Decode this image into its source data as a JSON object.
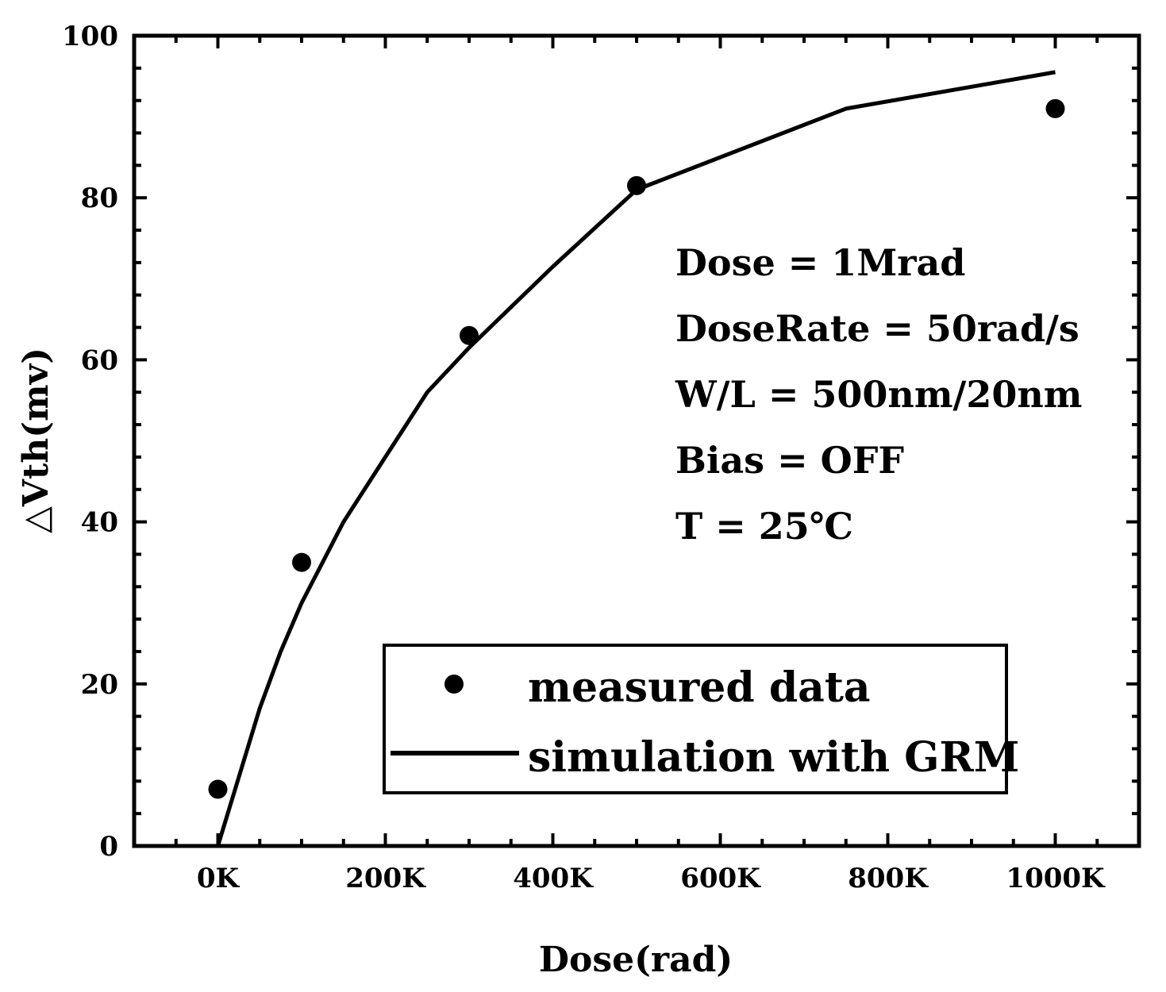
{
  "chart_data": {
    "type": "scatter+line",
    "title": "",
    "xlabel": "Dose(rad)",
    "ylabel": "△Vth(mv)",
    "xlim": [
      -100000,
      1100000
    ],
    "ylim": [
      0,
      100
    ],
    "x_ticks": [
      0,
      200000,
      400000,
      600000,
      800000,
      1000000
    ],
    "x_tick_labels": [
      "0K",
      "200K",
      "400K",
      "600K",
      "800K",
      "1000K"
    ],
    "y_ticks": [
      0,
      20,
      40,
      60,
      80,
      100
    ],
    "y_tick_labels": [
      "0",
      "20",
      "40",
      "60",
      "80",
      "100"
    ],
    "grid": false,
    "legend_position": "bottom-right",
    "series": [
      {
        "name": "measured data",
        "kind": "scatter",
        "color": "#000000",
        "x": [
          0,
          100000,
          300000,
          500000,
          1000000
        ],
        "y": [
          7,
          35,
          63,
          81.5,
          91
        ]
      },
      {
        "name": "simulation with GRM",
        "kind": "line",
        "color": "#000000",
        "x": [
          0,
          25000,
          50000,
          75000,
          100000,
          150000,
          200000,
          250000,
          300000,
          400000,
          500000,
          750000,
          1000000
        ],
        "y": [
          0,
          8.5,
          17,
          24,
          30,
          40,
          48,
          56,
          61.5,
          71.5,
          81,
          91,
          95.5
        ]
      }
    ],
    "annotations": [
      "Dose = 1Mrad",
      "DoseRate = 50rad/s",
      "W/L = 500nm/20nm",
      "Bias = OFF",
      "T = 25℃"
    ]
  }
}
